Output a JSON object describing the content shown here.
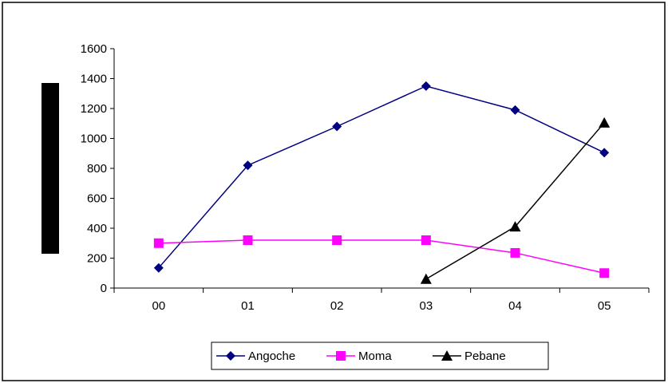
{
  "chart_data": {
    "type": "line",
    "title": "",
    "xlabel": "",
    "ylabel": "",
    "categories": [
      "00",
      "01",
      "02",
      "03",
      "04",
      "05"
    ],
    "ylim": [
      0,
      1600
    ],
    "yticks": [
      0,
      200,
      400,
      600,
      800,
      1000,
      1200,
      1400,
      1600
    ],
    "grid": false,
    "legend_position": "bottom",
    "series": [
      {
        "name": "Angoche",
        "values": [
          135,
          820,
          1080,
          1350,
          1190,
          905
        ],
        "color": "#000080",
        "marker": "diamond"
      },
      {
        "name": "Moma",
        "values": [
          300,
          320,
          320,
          320,
          235,
          100
        ],
        "color": "#FF00FF",
        "marker": "square"
      },
      {
        "name": "Pebane",
        "values": [
          null,
          null,
          null,
          60,
          410,
          1105
        ],
        "color": "#000000",
        "marker": "triangle"
      }
    ]
  }
}
